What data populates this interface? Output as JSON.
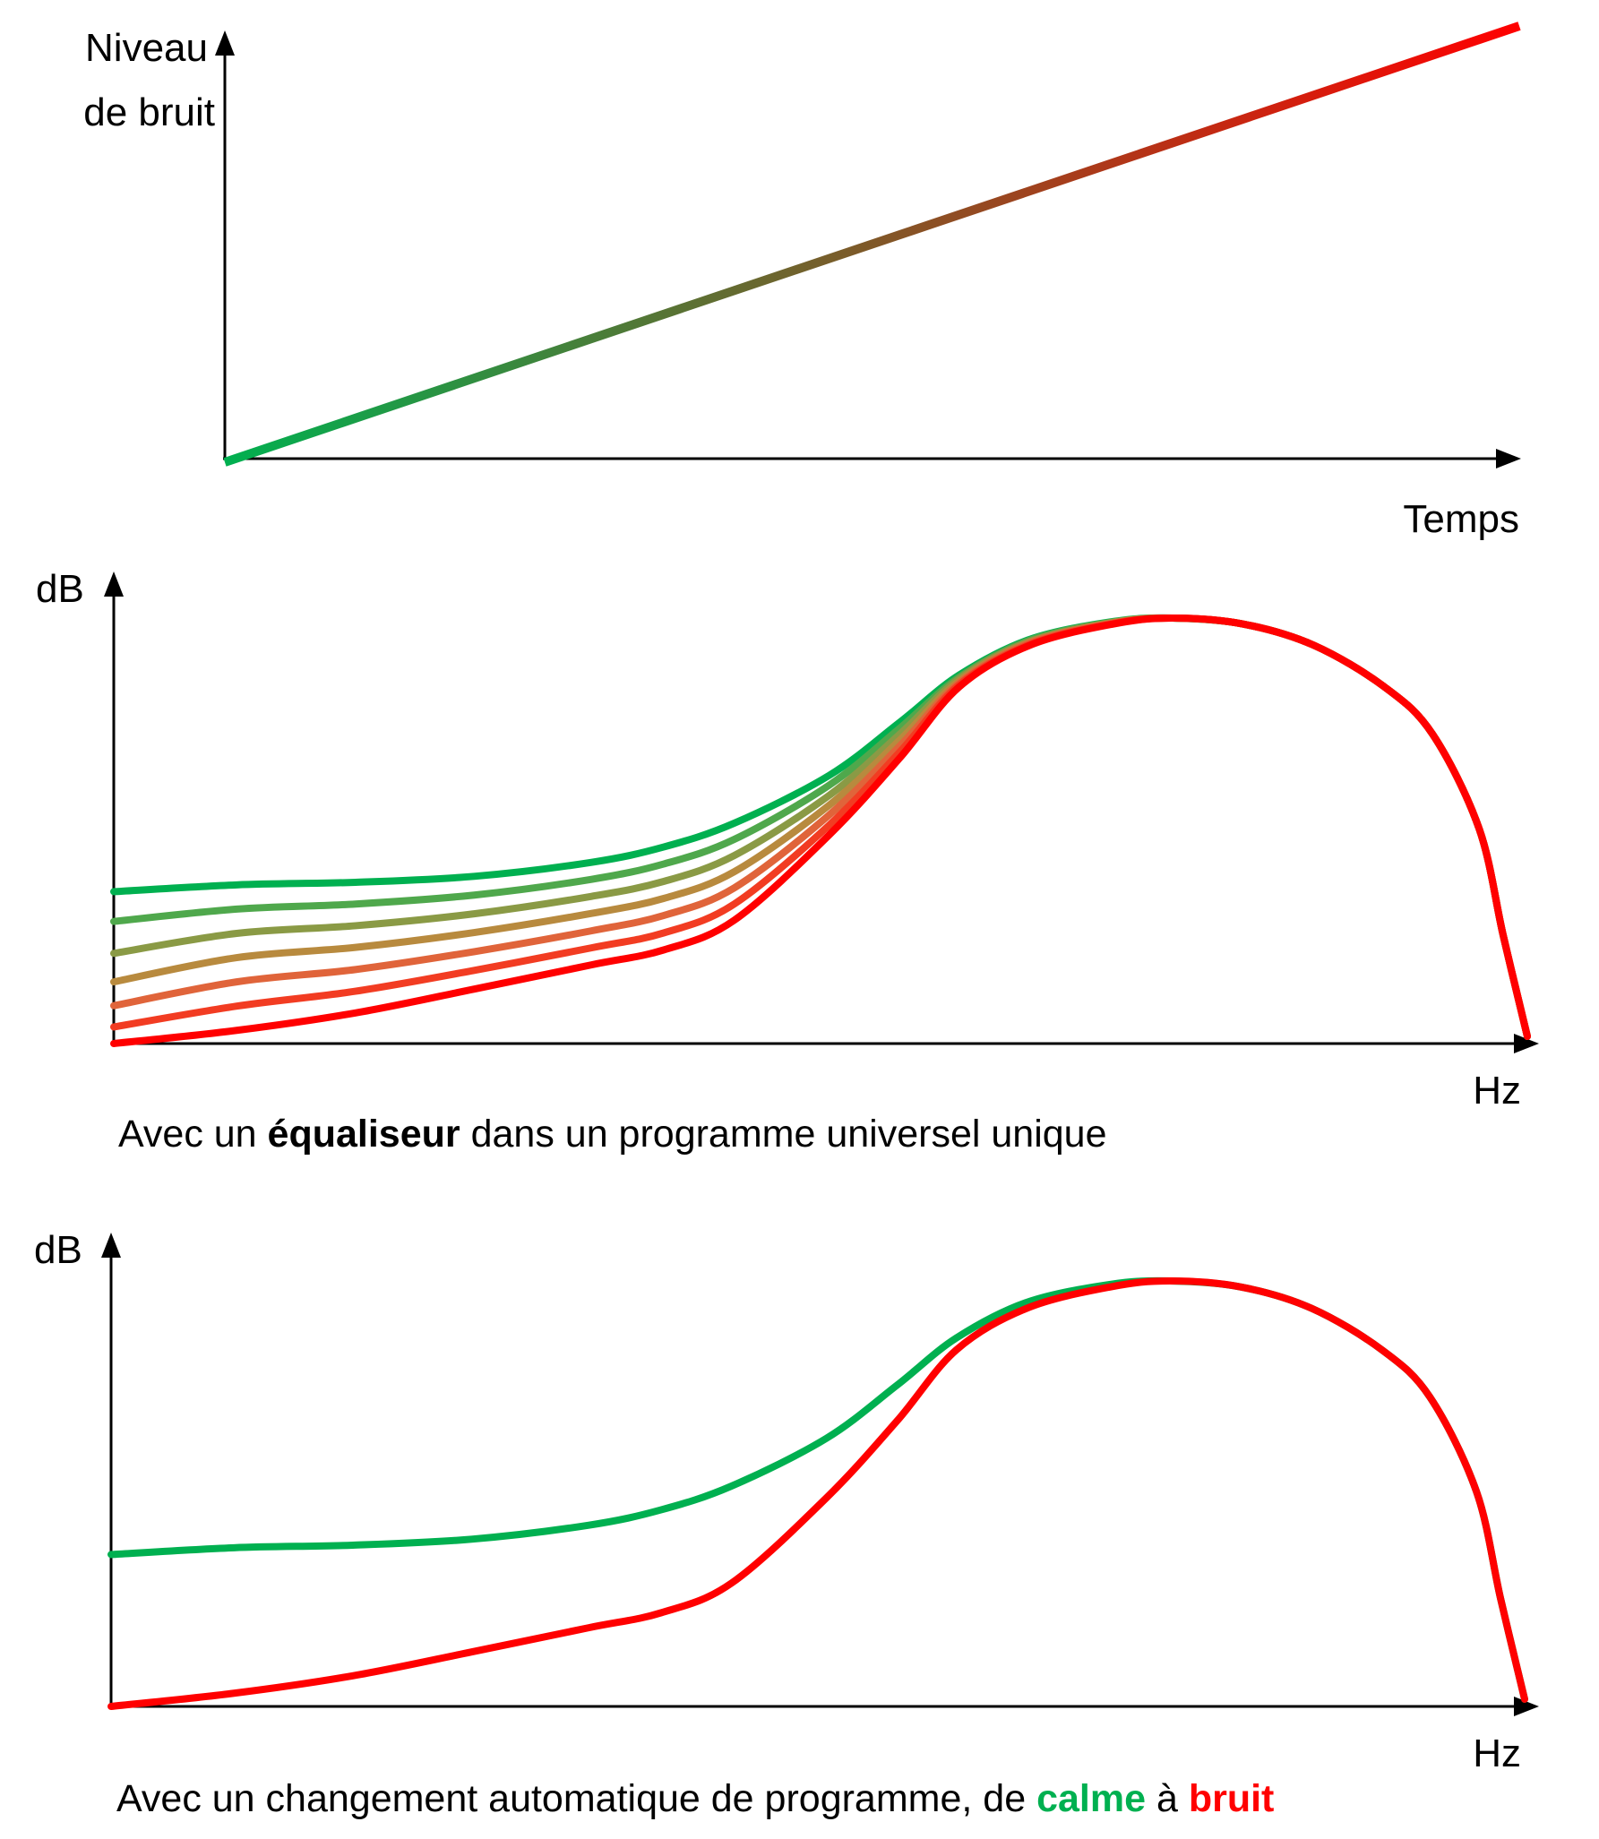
{
  "chart_data": [
    {
      "type": "line",
      "xlabel": "Temps",
      "ylabel_line1": "Niveau",
      "ylabel_line2": "de bruit",
      "gradient_colors": [
        "#00b050",
        "#ff0000"
      ],
      "x": [
        0,
        100
      ],
      "y": [
        0,
        100
      ]
    },
    {
      "type": "line",
      "ylabel": "dB",
      "xlabel": "Hz",
      "caption": {
        "pre": "Avec un ",
        "bold": "équaliseur",
        "post": " dans un programme universel unique"
      },
      "x": [
        0,
        8.7,
        17.1,
        25.5,
        33.8,
        38.9,
        43.9,
        50.6,
        55.6,
        59.8,
        64.8,
        70.7,
        74.9,
        79.9,
        84.9,
        89.9,
        93.3,
        96.6,
        98.3,
        100
      ],
      "series": [
        {
          "color": "#00b050",
          "values": [
            35.7,
            37.3,
            37.9,
            39.3,
            42.6,
            46.2,
            51.8,
            63.0,
            75.5,
            86.6,
            95.0,
            99.2,
            100,
            98.6,
            93.6,
            83.8,
            72.7,
            50.4,
            25.3,
            1.7
          ]
        },
        {
          "color": "#4fa84c",
          "values": [
            28.7,
            31.6,
            32.8,
            34.9,
            38.6,
            42.2,
            48.0,
            60.7,
            74.1,
            86.1,
            94.8,
            99.1,
            100,
            98.6,
            93.6,
            83.8,
            72.7,
            50.4,
            25.3,
            1.7
          ]
        },
        {
          "color": "#8a9a45",
          "values": [
            21.2,
            25.9,
            27.7,
            30.5,
            34.6,
            38.1,
            44.2,
            58.3,
            72.7,
            85.7,
            94.5,
            99.0,
            100,
            98.6,
            93.6,
            83.8,
            72.7,
            50.4,
            25.3,
            1.7
          ]
        },
        {
          "color": "#b88a3e",
          "values": [
            14.5,
            20.2,
            22.6,
            26.1,
            30.6,
            34.1,
            40.4,
            56.0,
            71.3,
            85.2,
            94.3,
            98.9,
            100,
            98.6,
            93.6,
            83.8,
            72.7,
            50.4,
            25.3,
            1.7
          ]
        },
        {
          "color": "#e0643a",
          "values": [
            8.9,
            14.5,
            17.4,
            21.6,
            26.5,
            30.1,
            36.6,
            53.7,
            69.9,
            84.7,
            94.1,
            98.8,
            100,
            98.6,
            93.6,
            83.8,
            72.7,
            50.4,
            25.3,
            1.7
          ]
        },
        {
          "color": "#f23c22",
          "values": [
            3.9,
            8.8,
            12.3,
            17.2,
            22.5,
            26.0,
            32.8,
            51.3,
            68.5,
            84.3,
            93.8,
            98.7,
            100,
            98.6,
            93.6,
            83.8,
            72.7,
            50.4,
            25.3,
            1.7
          ]
        },
        {
          "color": "#ff0000",
          "values": [
            0,
            3.1,
            7.2,
            12.8,
            18.5,
            22.0,
            29.0,
            49.0,
            67.1,
            83.8,
            93.6,
            98.6,
            100,
            98.6,
            93.6,
            83.8,
            72.7,
            50.4,
            25.3,
            1.7
          ]
        }
      ]
    },
    {
      "type": "line",
      "ylabel": "dB",
      "xlabel": "Hz",
      "caption": {
        "pre": "Avec un changement automatique de programme, de ",
        "calme": "calme",
        "mid": " à ",
        "bruit": "bruit"
      },
      "x": [
        0,
        8.7,
        17.1,
        25.5,
        33.8,
        38.9,
        43.9,
        50.6,
        55.6,
        59.8,
        64.8,
        70.7,
        74.9,
        79.9,
        84.9,
        89.9,
        93.3,
        96.6,
        98.3,
        100
      ],
      "series": [
        {
          "name": "calme",
          "color": "#00b050",
          "values": [
            35.7,
            37.3,
            37.9,
            39.3,
            42.6,
            46.2,
            51.8,
            63.0,
            75.5,
            86.6,
            95.0,
            99.2,
            100,
            98.6,
            93.6,
            83.8,
            72.7,
            50.4,
            25.3,
            1.7
          ]
        },
        {
          "name": "bruit",
          "color": "#ff0000",
          "values": [
            0,
            3.1,
            7.2,
            12.8,
            18.5,
            22.0,
            29.0,
            49.0,
            67.1,
            83.8,
            93.6,
            98.6,
            100,
            98.6,
            93.6,
            83.8,
            72.7,
            50.4,
            25.3,
            1.7
          ]
        }
      ]
    }
  ]
}
